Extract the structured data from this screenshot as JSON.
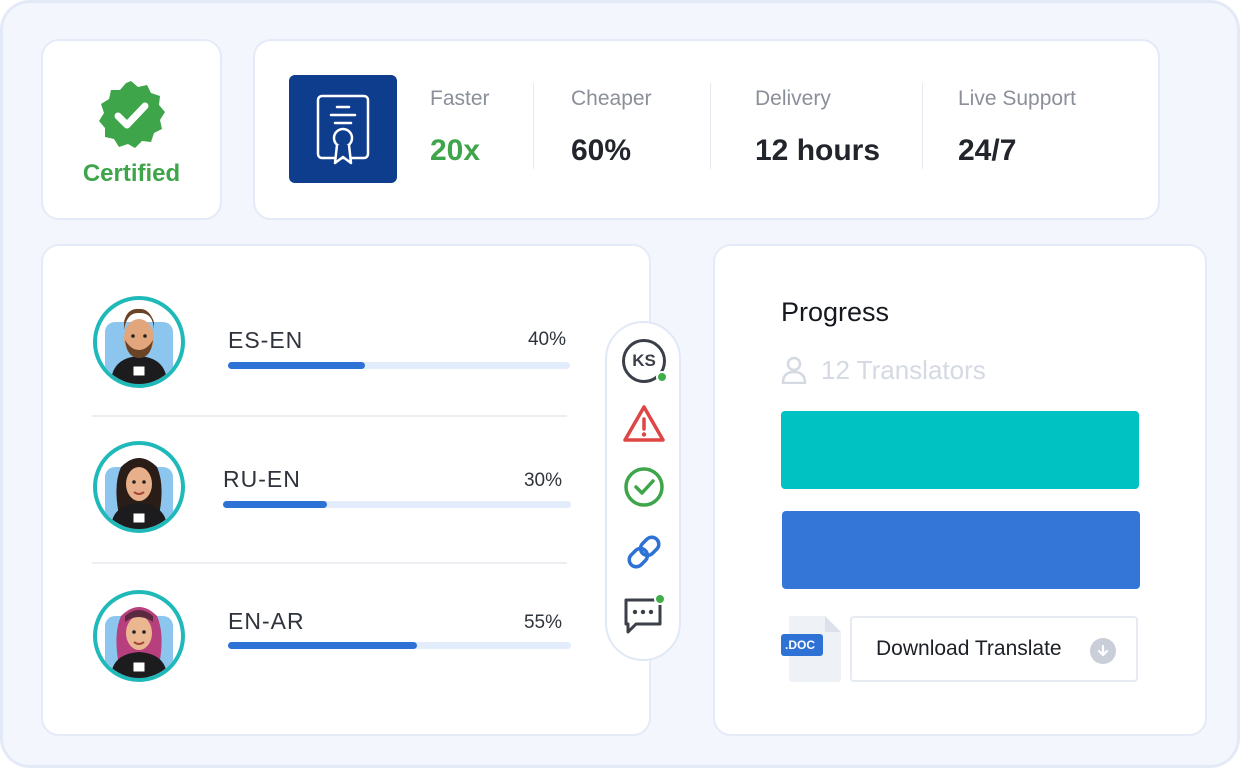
{
  "certified": {
    "label": "Certified",
    "icon": "verified-badge-icon",
    "color": "#3fa54a"
  },
  "stats": [
    {
      "label": "Faster",
      "value": "20x",
      "accent": "#3fa54a"
    },
    {
      "label": "Cheaper",
      "value": "60%"
    },
    {
      "label": "Delivery",
      "value": "12 hours"
    },
    {
      "label": "Live Support",
      "value": "24/7"
    }
  ],
  "languages": [
    {
      "pair": "ES-EN",
      "percent_label": "40%",
      "progress": 0.4,
      "avatar": "man-with-beard-avatar"
    },
    {
      "pair": "RU-EN",
      "percent_label": "30%",
      "progress": 0.3,
      "avatar": "woman-dark-hair-avatar"
    },
    {
      "pair": "EN-AR",
      "percent_label": "55%",
      "progress": 0.55,
      "avatar": "woman-pink-hair-avatar"
    }
  ],
  "toolbar": {
    "avatar_initials": "KS",
    "tools": [
      "warning-icon",
      "check-circle-icon",
      "link-icon",
      "chat-icon"
    ]
  },
  "progress": {
    "title": "Progress",
    "translators": "12 Translators",
    "file_badge": ".DOC",
    "download_label": "Download Translate",
    "bar_colors": [
      "#00c2c3",
      "#3376d8"
    ]
  },
  "colors": {
    "brand_navy": "#0f3d8e",
    "progress_blue": "#2f72d6",
    "teal": "#1fb9b9",
    "green": "#3fa54a",
    "warning_red": "#e04545"
  }
}
